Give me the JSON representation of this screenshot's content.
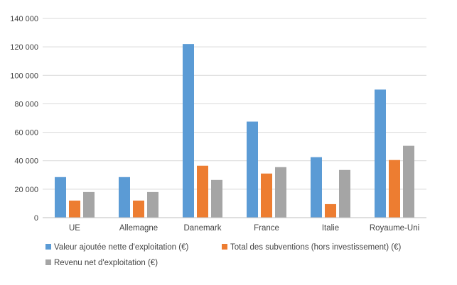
{
  "chart_data": {
    "type": "bar",
    "categories": [
      "UE",
      "Allemagne",
      "Danemark",
      "France",
      "Italie",
      "Royaume-Uni"
    ],
    "series": [
      {
        "name": "Valeur ajoutée nette d'exploitation (€)",
        "color": "#5b9bd5",
        "values": [
          28500,
          28500,
          122000,
          67500,
          42500,
          90000
        ]
      },
      {
        "name": "Total des subventions (hors investissement) (€)",
        "color": "#ed7d31",
        "values": [
          12000,
          12000,
          36500,
          31000,
          9500,
          40500
        ]
      },
      {
        "name": "Revenu net d'exploitation (€)",
        "color": "#a5a5a5",
        "values": [
          18000,
          18000,
          26500,
          35500,
          33500,
          50500
        ]
      }
    ],
    "ylim": [
      0,
      140000
    ],
    "yticks": [
      0,
      20000,
      40000,
      60000,
      80000,
      100000,
      120000,
      140000
    ],
    "ytick_labels": [
      "0",
      "20 000",
      "40 000",
      "60 000",
      "80 000",
      "100 000",
      "120 000",
      "140 000"
    ],
    "grid": true,
    "legend_position": "bottom",
    "title": "",
    "xlabel": "",
    "ylabel": ""
  }
}
